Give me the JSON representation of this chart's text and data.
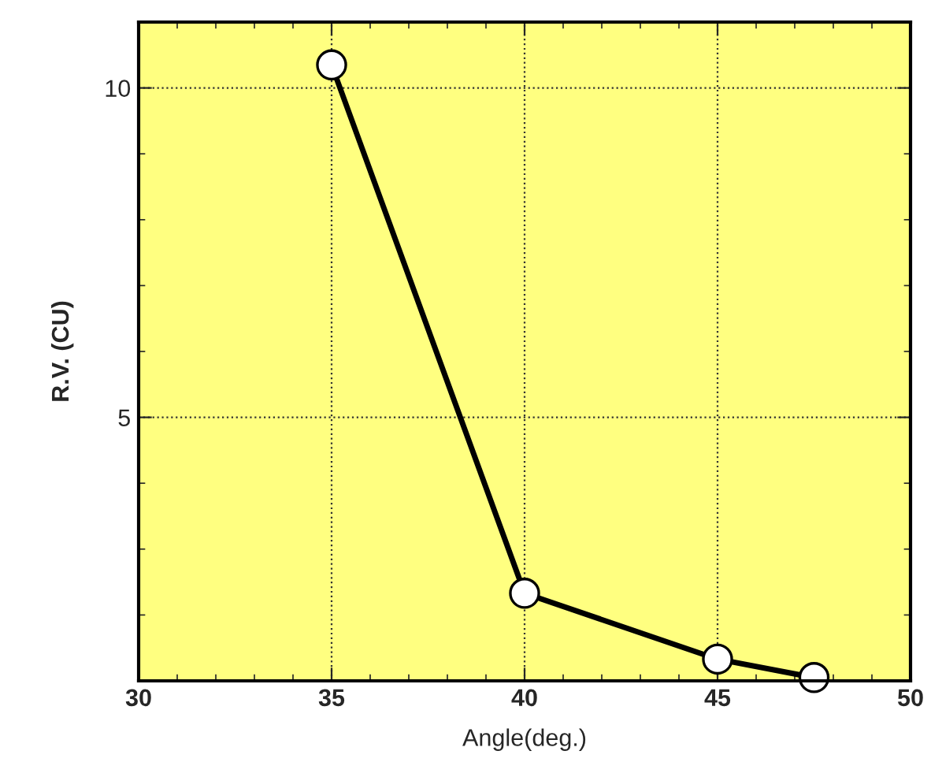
{
  "chart_data": {
    "type": "line",
    "xlabel": "Angle(deg.)",
    "ylabel": "R.V. (CU)",
    "x": [
      35,
      40,
      45,
      47.5
    ],
    "series": [
      {
        "color": "#000000",
        "values": [
          10.35,
          2.33,
          1.33,
          1.05
        ]
      }
    ],
    "xlim": [
      30,
      50
    ],
    "xticks": [
      30,
      35,
      40,
      45,
      50
    ],
    "ylim": [
      1,
      11
    ],
    "yticks": [
      5,
      10
    ],
    "grid": true,
    "marker": "circle",
    "line_style": "solid"
  }
}
